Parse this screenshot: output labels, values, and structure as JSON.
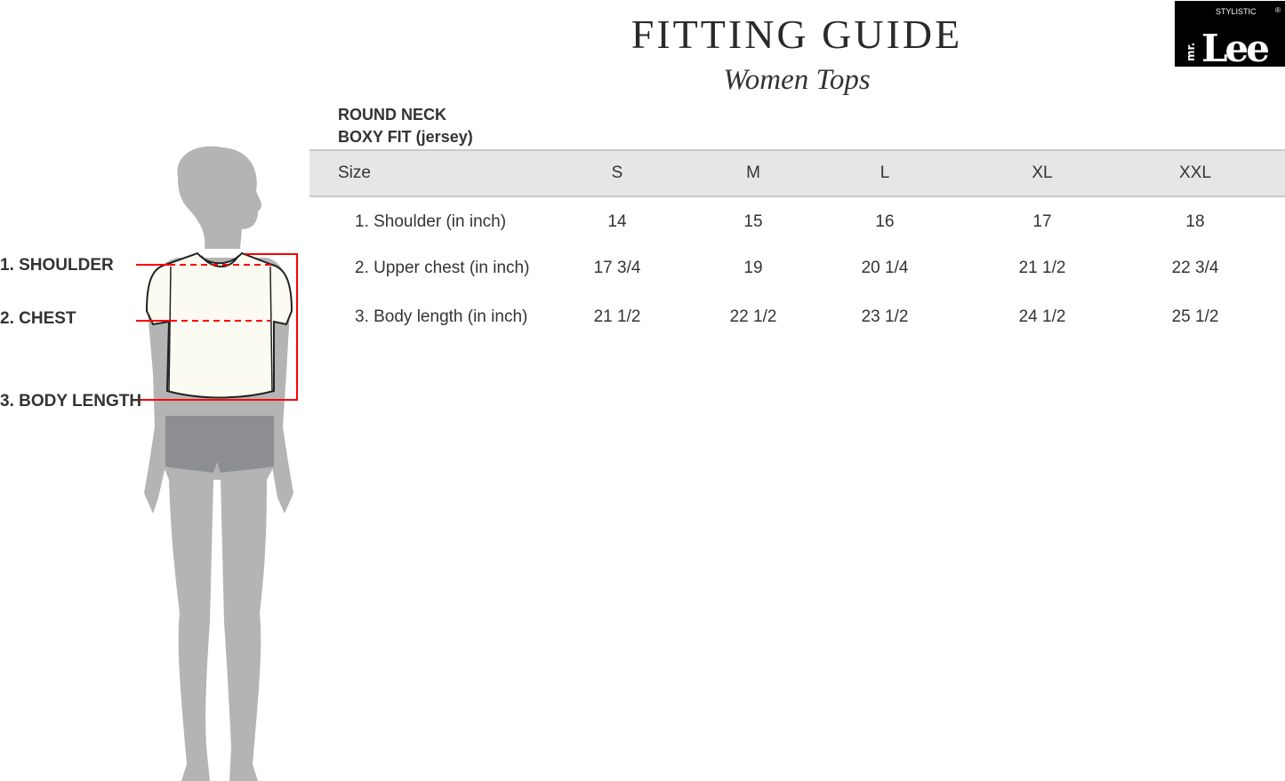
{
  "header": {
    "title": "FITTING GUIDE",
    "subtitle": "Women Tops"
  },
  "logo": {
    "small_text": "STYLISTIC",
    "brand": "mr. Lee",
    "registered": "®"
  },
  "style": {
    "neck": "ROUND NECK",
    "fit": "BOXY FIT (jersey)"
  },
  "figure": {
    "labels": [
      "1. SHOULDER",
      "2. CHEST",
      "3. BODY LENGTH"
    ],
    "accent": "#ff0000"
  },
  "table": {
    "header": [
      "Size",
      "S",
      "M",
      "L",
      "XL",
      "XXL"
    ],
    "rows": [
      {
        "label": "1. Shoulder (in inch)",
        "values": [
          "14",
          "15",
          "16",
          "17",
          "18"
        ]
      },
      {
        "label": "2. Upper chest (in inch)",
        "values": [
          "17 3/4",
          "19",
          "20 1/4",
          "21 1/2",
          "22 3/4"
        ]
      },
      {
        "label": "3. Body length (in inch)",
        "values": [
          "21 1/2",
          "22 1/2",
          "23 1/2",
          "24 1/2",
          "25 1/2"
        ]
      }
    ]
  }
}
